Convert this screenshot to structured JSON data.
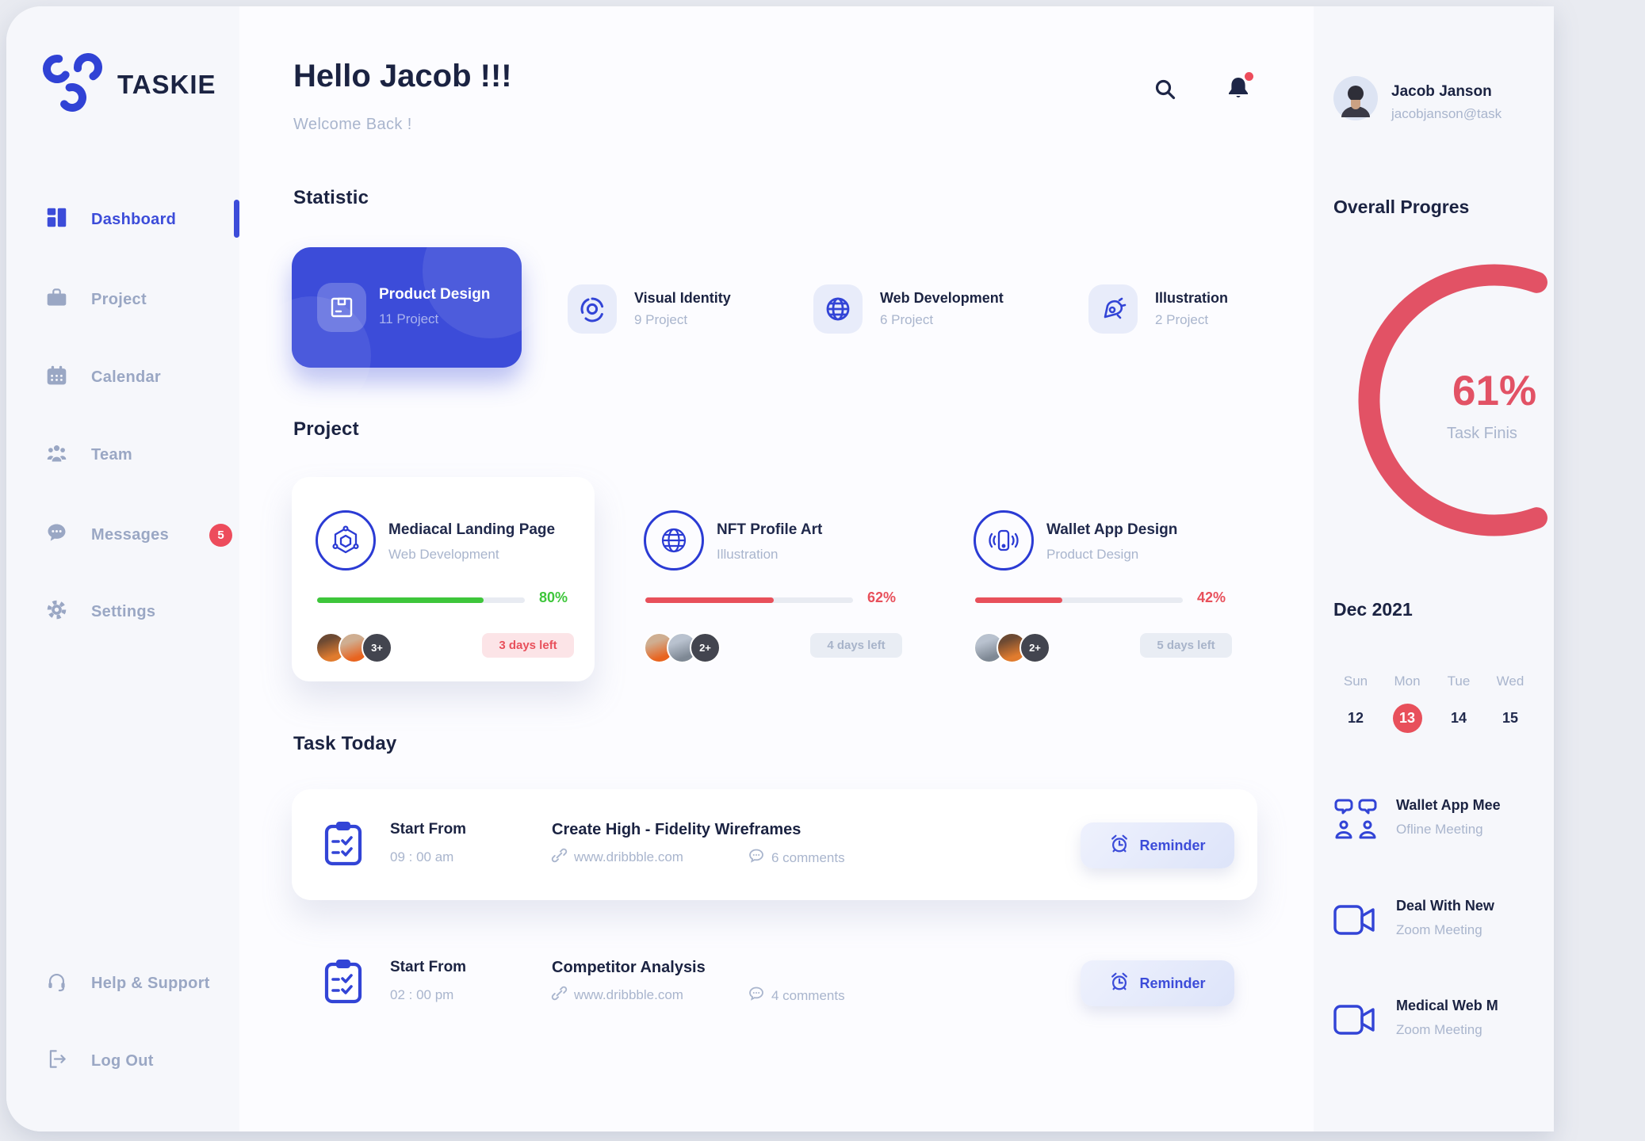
{
  "app_name": "TASKIE",
  "sidebar": {
    "items": [
      {
        "label": "Dashboard"
      },
      {
        "label": "Project"
      },
      {
        "label": "Calendar"
      },
      {
        "label": "Team"
      },
      {
        "label": "Messages",
        "badge": "5"
      },
      {
        "label": "Settings"
      }
    ],
    "footer": [
      {
        "label": "Help & Support"
      },
      {
        "label": "Log Out"
      }
    ]
  },
  "header": {
    "greeting": "Hello Jacob !!!",
    "welcome": "Welcome Back !"
  },
  "statistic": {
    "heading": "Statistic",
    "cards": [
      {
        "title": "Product Design",
        "count": "11 Project"
      },
      {
        "title": "Visual Identity",
        "count": "9 Project"
      },
      {
        "title": "Web Development",
        "count": "6 Project"
      },
      {
        "title": "Illustration",
        "count": "2 Project"
      }
    ]
  },
  "projects": {
    "heading": "Project",
    "cards": [
      {
        "name": "Mediacal Landing Page",
        "category": "Web Development",
        "progress": 80,
        "progress_label": "80%",
        "progress_color": "#3ec63b",
        "team_extra": "3+",
        "due": "3 days left"
      },
      {
        "name": "NFT Profile Art",
        "category": "Illustration",
        "progress": 62,
        "progress_label": "62%",
        "progress_color": "#e8505b",
        "team_extra": "2+",
        "due": "4 days left"
      },
      {
        "name": "Wallet App Design",
        "category": "Product Design",
        "progress": 42,
        "progress_label": "42%",
        "progress_color": "#e8505b",
        "team_extra": "2+",
        "due": "5 days left"
      }
    ]
  },
  "tasks": {
    "heading": "Task Today",
    "items": [
      {
        "start_label": "Start From",
        "time": "09 : 00 am",
        "name": "Create High - Fidelity Wireframes",
        "link": "www.dribbble.com",
        "comments": "6 comments",
        "action": "Reminder"
      },
      {
        "start_label": "Start From",
        "time": "02 : 00 pm",
        "name": "Competitor Analysis",
        "link": "www.dribbble.com",
        "comments": "4 comments",
        "action": "Reminder"
      }
    ]
  },
  "profile": {
    "name": "Jacob Janson",
    "email": "jacobjanson@task"
  },
  "overall_progress": {
    "heading": "Overall Progres",
    "percent": 61,
    "percent_label": "61%",
    "caption": "Task Finis"
  },
  "calendar": {
    "month": "Dec 2021",
    "day_headers": [
      "Sun",
      "Mon",
      "Tue",
      "Wed"
    ],
    "dates": [
      "12",
      "13",
      "14",
      "15"
    ],
    "selected": "13"
  },
  "meetings": [
    {
      "title": "Wallet App Mee",
      "subtitle": "Ofline Meeting"
    },
    {
      "title": "Deal With New",
      "subtitle": "Zoom Meeting"
    },
    {
      "title": "Medical Web M",
      "subtitle": "Zoom Meeting"
    }
  ],
  "colors": {
    "primary": "#3c4cd9",
    "red": "#e8505b",
    "green": "#3ec63b",
    "navy": "#1b2342",
    "muted": "#a9b5cd",
    "badge_red": "#ed4c5c",
    "donut": "#e25265"
  }
}
